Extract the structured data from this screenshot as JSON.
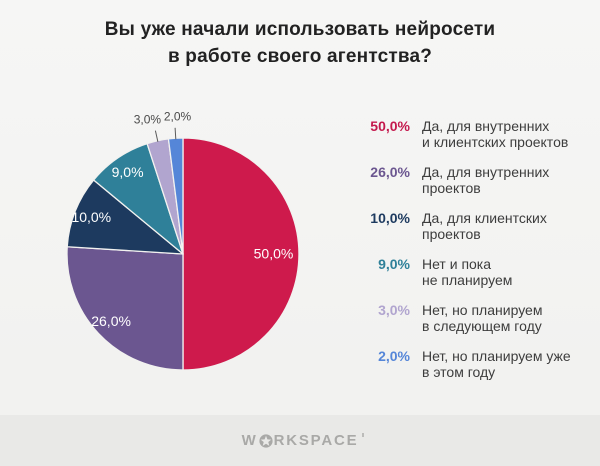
{
  "title": {
    "line1": "Вы уже начали использовать нейросети",
    "line2": "в работе своего агентства?"
  },
  "chart_data": {
    "type": "pie",
    "title": "Вы уже начали использовать нейросети в работе своего агентства?",
    "start_angle_deg": 0,
    "direction": "clockwise",
    "legend_position": "right",
    "slices": [
      {
        "label": "Да, для внутренних и клиентских проектов",
        "value": 50.0,
        "display": "50,0%",
        "color": "#ce1a4c",
        "label_position": "inside",
        "label_dx": 0
      },
      {
        "label": "Да, для внутренних проектов",
        "value": 26.0,
        "display": "26,0%",
        "color": "#6b5690",
        "label_position": "inside",
        "label_dx": 0
      },
      {
        "label": "Да, для клиентских проектов",
        "value": 10.0,
        "display": "10,0%",
        "color": "#1d3a5f",
        "label_position": "inside",
        "label_dx": 0
      },
      {
        "label": "Нет и пока не планируем",
        "value": 9.0,
        "display": "9,0%",
        "color": "#2f8099",
        "label_position": "inside",
        "label_dx": 0
      },
      {
        "label": "Нет, но планируем в следующем году",
        "value": 3.0,
        "display": "3,0%",
        "color": "#b1a5cf",
        "label_position": "outside",
        "label_dx": -6
      },
      {
        "label": "Нет, но планируем уже в этом году",
        "value": 2.0,
        "display": "2,0%",
        "color": "#5586d8",
        "label_position": "outside",
        "label_dx": 3
      }
    ]
  },
  "legend": {
    "items": [
      {
        "pct": "50,0%",
        "color": "#c4194d",
        "line1": "Да, для внутренних",
        "line2": "и клиентских проектов"
      },
      {
        "pct": "26,0%",
        "color": "#6b5690",
        "line1": "Да, для внутренних",
        "line2": "проектов"
      },
      {
        "pct": "10,0%",
        "color": "#1d3a5f",
        "line1": "Да, для клиентских",
        "line2": "проектов"
      },
      {
        "pct": "9,0%",
        "color": "#2f8099",
        "line1": "Нет и пока",
        "line2": "не планируем"
      },
      {
        "pct": "3,0%",
        "color": "#b1a5cf",
        "line1": "Нет, но планируем",
        "line2": "в следующем году"
      },
      {
        "pct": "2,0%",
        "color": "#5586d8",
        "line1": "Нет, но планируем уже",
        "line2": "в этом году"
      }
    ]
  },
  "footer": {
    "logo_pre": "W",
    "logo_post": "RKSPACE",
    "logo_icon": "star-in-circle"
  }
}
